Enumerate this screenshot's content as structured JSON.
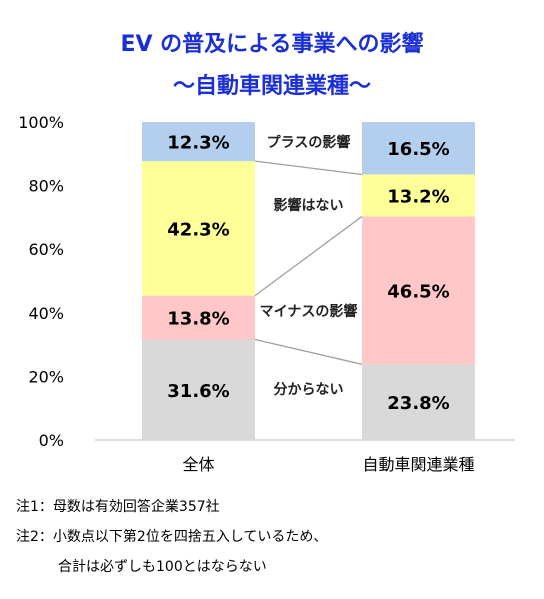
{
  "chart_data": {
    "type": "bar",
    "stacked": true,
    "title": "EV の普及による事業への影響",
    "subtitle": "～自動車関連業種～",
    "categories": [
      "全体",
      "自動車関連業種"
    ],
    "yticks": [
      "0%",
      "20%",
      "40%",
      "60%",
      "80%",
      "100%"
    ],
    "ylim": [
      0,
      100
    ],
    "series": [
      {
        "name": "分からない",
        "values": [
          31.6,
          23.8
        ],
        "labels": [
          "31.6%",
          "23.8%"
        ],
        "color": "#d9d9d9"
      },
      {
        "name": "マイナスの影響",
        "values": [
          13.8,
          46.5
        ],
        "labels": [
          "13.8%",
          "46.5%"
        ],
        "color": "#ffc7c7"
      },
      {
        "name": "影響はない",
        "values": [
          42.3,
          13.2
        ],
        "labels": [
          "42.3%",
          "13.2%"
        ],
        "color": "#ffff99"
      },
      {
        "name": "プラスの影響",
        "values": [
          12.3,
          16.5
        ],
        "labels": [
          "12.3%",
          "16.5%"
        ],
        "color": "#b4cfee"
      }
    ]
  },
  "notes": [
    "注1：母数は有効回答企業357社",
    "注2：小数点以下第2位を四捨五入しているため、",
    "合計は必ずしも100とはならない"
  ]
}
